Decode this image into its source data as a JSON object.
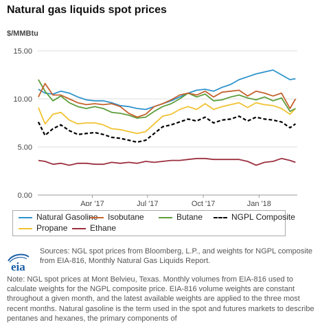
{
  "title": "Natural gas liquids spot prices",
  "sources": "Sources: NGL spot prices from Bloomberg, L.P., and weights for NGPL composite from EIA-816, Monthly Natural Gas Liquids Report.",
  "note": "Note: NGL spot prices at Mont Belvieu, Texas. Monthly volumes from EIA-816 used to calculate weights for the NGPL composite price. EIA-816 volume weights are constant throughout a given month, and the latest available weights are applied to the three most recent months. Natural gasoline is the term used in the spot and futures markets to describe pentanes and hexanes, the primary components of",
  "logo": {
    "text": "eia"
  },
  "colors": {
    "natural_gasoline": "#2e93cc",
    "isobutane": "#c4622d",
    "butane": "#5c9e3a",
    "ngpl": "#000000",
    "propane": "#f1c232",
    "ethane": "#9c2f3f"
  },
  "chart_data": {
    "type": "line",
    "ylabel": "$/MMBtu",
    "ylim": [
      0,
      15
    ],
    "yticks": [
      "0.00",
      "5.00",
      "10.00",
      "15.00"
    ],
    "xticks": [
      "Apr '17",
      "Jul '17",
      "Oct '17",
      "Jan '18"
    ],
    "xtick_dates": [
      "2017-04-01",
      "2017-07-01",
      "2017-10-01",
      "2018-01-01"
    ],
    "x": [
      "2017-01-02",
      "2017-01-13",
      "2017-01-26",
      "2017-02-08",
      "2017-02-22",
      "2017-03-08",
      "2017-03-22",
      "2017-04-05",
      "2017-04-19",
      "2017-05-03",
      "2017-05-17",
      "2017-05-31",
      "2017-06-14",
      "2017-06-28",
      "2017-07-12",
      "2017-07-26",
      "2017-08-09",
      "2017-08-23",
      "2017-09-06",
      "2017-09-20",
      "2017-10-04",
      "2017-10-18",
      "2017-11-01",
      "2017-11-15",
      "2017-11-29",
      "2017-12-13",
      "2017-12-27",
      "2018-01-10",
      "2018-01-24",
      "2018-02-07",
      "2018-02-21",
      "2018-03-02"
    ],
    "legend_position": "bottom",
    "series": [
      {
        "name": "Natural Gasoline",
        "color_key": "natural_gasoline",
        "dash": false,
        "values": [
          11.0,
          10.6,
          10.5,
          10.8,
          10.6,
          10.2,
          9.9,
          9.8,
          9.8,
          9.6,
          9.3,
          9.2,
          9.0,
          8.9,
          9.2,
          9.5,
          9.8,
          10.2,
          10.6,
          10.9,
          11.0,
          10.8,
          11.2,
          11.5,
          12.0,
          12.3,
          12.6,
          12.8,
          13.0,
          12.5,
          12.0,
          12.1
        ]
      },
      {
        "name": "Isobutane",
        "color_key": "isobutane",
        "dash": false,
        "values": [
          10.2,
          11.6,
          10.4,
          10.4,
          10.0,
          9.6,
          9.4,
          9.5,
          9.4,
          9.5,
          9.2,
          8.5,
          8.1,
          8.4,
          9.2,
          9.5,
          9.9,
          10.4,
          10.6,
          10.4,
          10.8,
          10.2,
          10.7,
          10.8,
          10.9,
          10.3,
          10.8,
          10.6,
          10.3,
          10.6,
          9.0,
          10.0
        ]
      },
      {
        "name": "Butane",
        "color_key": "butane",
        "dash": false,
        "values": [
          12.0,
          10.8,
          9.8,
          10.3,
          9.6,
          9.2,
          9.0,
          9.2,
          9.0,
          8.6,
          8.5,
          8.3,
          8.0,
          8.1,
          8.7,
          9.2,
          9.5,
          10.0,
          10.6,
          10.2,
          10.5,
          9.8,
          9.9,
          10.2,
          10.4,
          10.1,
          9.9,
          10.2,
          9.8,
          10.1,
          8.7,
          9.0
        ]
      },
      {
        "name": "NGPL Composite",
        "color_key": "ngpl",
        "dash": true,
        "values": [
          7.6,
          6.2,
          6.9,
          7.3,
          6.7,
          6.3,
          6.4,
          6.5,
          6.3,
          6.0,
          5.9,
          5.7,
          5.5,
          5.7,
          6.4,
          7.1,
          7.3,
          7.6,
          7.9,
          7.7,
          8.1,
          7.5,
          7.8,
          7.9,
          8.2,
          7.7,
          8.1,
          7.9,
          7.8,
          7.6,
          7.0,
          7.4
        ]
      },
      {
        "name": "Propane",
        "color_key": "propane",
        "dash": false,
        "values": [
          9.1,
          7.4,
          8.4,
          8.6,
          7.8,
          7.4,
          7.5,
          7.5,
          7.3,
          6.9,
          6.8,
          6.6,
          6.4,
          6.6,
          7.4,
          8.2,
          8.4,
          8.9,
          9.2,
          8.9,
          9.5,
          8.9,
          9.2,
          9.4,
          9.6,
          9.1,
          9.6,
          9.4,
          9.3,
          9.0,
          8.4,
          9.0
        ]
      },
      {
        "name": "Ethane",
        "color_key": "ethane",
        "dash": false,
        "values": [
          3.6,
          3.5,
          3.2,
          3.3,
          3.1,
          3.3,
          3.3,
          3.2,
          3.2,
          3.4,
          3.3,
          3.4,
          3.3,
          3.5,
          3.4,
          3.5,
          3.6,
          3.6,
          3.7,
          3.8,
          3.8,
          3.7,
          3.7,
          3.7,
          3.7,
          3.5,
          3.1,
          3.4,
          3.5,
          3.8,
          3.6,
          3.4
        ]
      }
    ]
  }
}
